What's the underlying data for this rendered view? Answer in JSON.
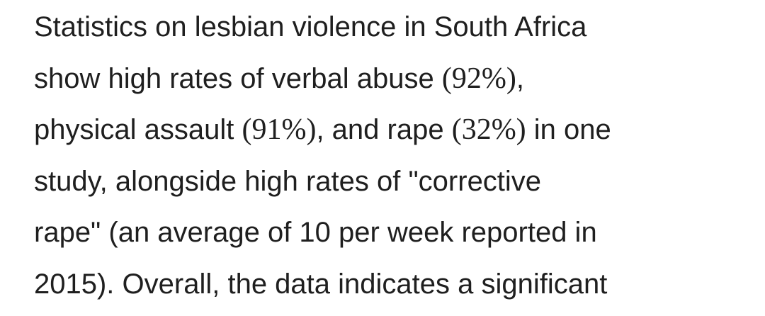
{
  "paragraph": {
    "lines": [
      [
        "Statistics on lesbian violence in South Africa"
      ],
      [
        "show high rates of verbal abuse ",
        {
          "math": "(92%)"
        },
        ","
      ],
      [
        "physical assault ",
        {
          "math": "(91%)"
        },
        ", and rape ",
        {
          "math": "(32%)"
        },
        " in one"
      ],
      [
        "study, alongside high rates of \"corrective"
      ],
      [
        "rape\" (an average of 10 per week reported in"
      ],
      [
        "2015). Overall, the data indicates a significant"
      ]
    ]
  }
}
